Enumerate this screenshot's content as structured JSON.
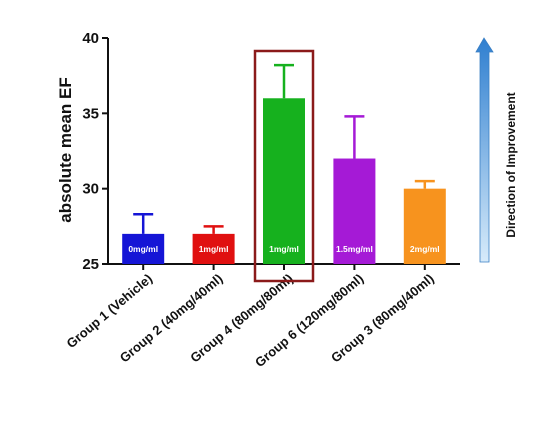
{
  "chart_data": {
    "type": "bar",
    "ylabel": "absolute mean EF",
    "xlabel": "",
    "ylim": [
      25,
      40
    ],
    "yticks": [
      25,
      30,
      35,
      40
    ],
    "grid": false,
    "categories": [
      "Group 1 (Vehicle)",
      "Group 2 (40mg/40ml)",
      "Group 4 (80mg/80ml)",
      "Group 6 (120mg/80ml)",
      "Group 3 (80mg/40ml)"
    ],
    "values": [
      27.0,
      27.0,
      36.0,
      32.0,
      30.0
    ],
    "error_upper": [
      28.3,
      27.5,
      38.2,
      34.8,
      30.5
    ],
    "bar_labels": [
      "0mg/ml",
      "1mg/ml",
      "1mg/ml",
      "1.5mg/ml",
      "2mg/ml"
    ],
    "colors": [
      "#1515d6",
      "#e01010",
      "#16b11e",
      "#a51ad6",
      "#f7931e"
    ],
    "highlight_index": 2,
    "highlight_color": "#8b1a1a",
    "direction_label": "Direction of Improvement",
    "arrow_color": "#3f8fd6"
  }
}
